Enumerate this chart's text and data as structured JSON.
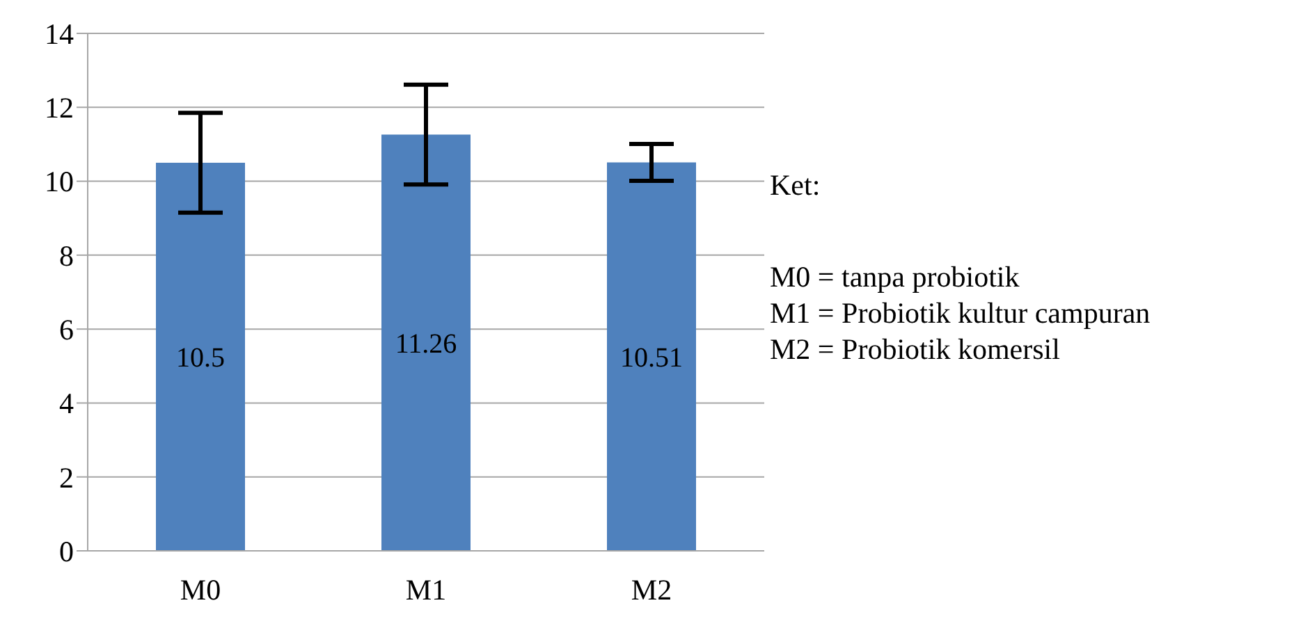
{
  "chart_data": {
    "type": "bar",
    "categories": [
      "M0",
      "M1",
      "M2"
    ],
    "series": [
      {
        "color": "#4f81bd",
        "values": [
          10.5,
          11.26,
          10.51
        ],
        "errors": [
          1.35,
          1.35,
          0.5
        ]
      }
    ],
    "data_labels": true,
    "ylim": [
      0,
      14
    ],
    "yticks": [
      0,
      2,
      4,
      6,
      8,
      10,
      12,
      14
    ],
    "grid": "y",
    "legend": false,
    "annotations": [
      "Ket:",
      "M0 = tanpa probiotik",
      "M1 = Probiotik kultur campuran",
      "M2 = Probiotik komersil"
    ]
  }
}
